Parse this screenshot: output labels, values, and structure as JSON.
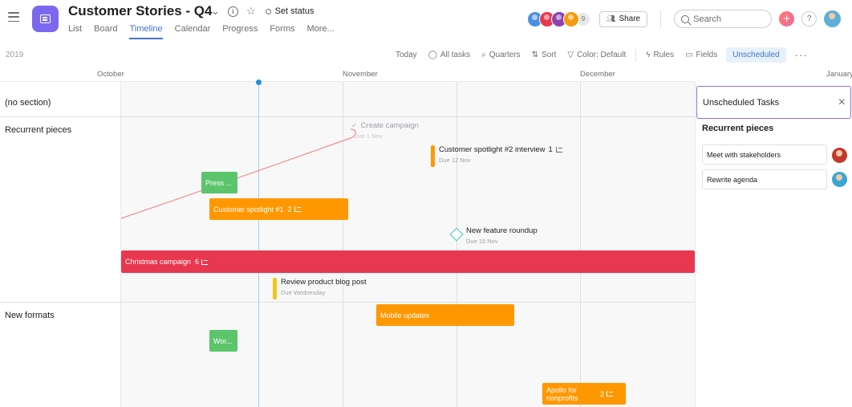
{
  "header": {
    "project_title": "Customer Stories - Q4",
    "set_status": "Set status",
    "tabs": [
      {
        "label": "List"
      },
      {
        "label": "Board"
      },
      {
        "label": "Timeline",
        "active": true
      },
      {
        "label": "Calendar"
      },
      {
        "label": "Progress"
      },
      {
        "label": "Forms"
      },
      {
        "label": "More..."
      }
    ],
    "members_count": "9",
    "share_label": "Share",
    "search_placeholder": "Search",
    "help_label": "?",
    "avatar_colors": [
      "#4a90e2",
      "#e8384f",
      "#8e44ad",
      "#f39c12"
    ]
  },
  "toolbar": {
    "year": "2019",
    "today": "Today",
    "all_tasks": "All tasks",
    "quarters": "Quarters",
    "sort": "Sort",
    "color": "Color: Default",
    "rules": "Rules",
    "fields": "Fields",
    "unscheduled": "Unscheduled",
    "more": "···"
  },
  "timeline": {
    "months": [
      "October",
      "November",
      "December",
      "January"
    ],
    "sections": [
      "(no section)",
      "Recurrent pieces",
      "New formats"
    ],
    "tasks": {
      "create_campaign": {
        "name": "Create campaign",
        "due": "Due 1 Nov"
      },
      "spotlight2": {
        "name": "Customer spotlight #2 interview",
        "subtasks": "1",
        "due": "Due 12 Nov"
      },
      "press": {
        "name": "Press ..."
      },
      "spotlight1": {
        "name": "Customer spotlight #1",
        "subtasks": "2"
      },
      "roundup": {
        "name": "New feature roundup",
        "due": "Due 15 Nov"
      },
      "christmas": {
        "name": "Christmas campaign",
        "subtasks": "6"
      },
      "blog": {
        "name": "Review product blog post",
        "due": "Due Wednesday"
      },
      "mobile": {
        "name": "Mobile updates"
      },
      "wor": {
        "name": "Wor..."
      },
      "apollo": {
        "name": "Apollo for nonprofits",
        "subtasks": "2"
      }
    },
    "colors": {
      "green": "#5cc46a",
      "orange": "#ff9800",
      "red": "#e8384f",
      "milestone": "#37c5ab",
      "dependency": "#f38c8c"
    }
  },
  "unscheduled_panel": {
    "title": "Unscheduled Tasks",
    "close": "×",
    "section": "Recurrent pieces",
    "tasks": [
      {
        "name": "Meet with stakeholders",
        "avatar_color": "#c0392b"
      },
      {
        "name": "Rewrite agenda",
        "avatar_color": "#3aa6d8"
      }
    ]
  }
}
